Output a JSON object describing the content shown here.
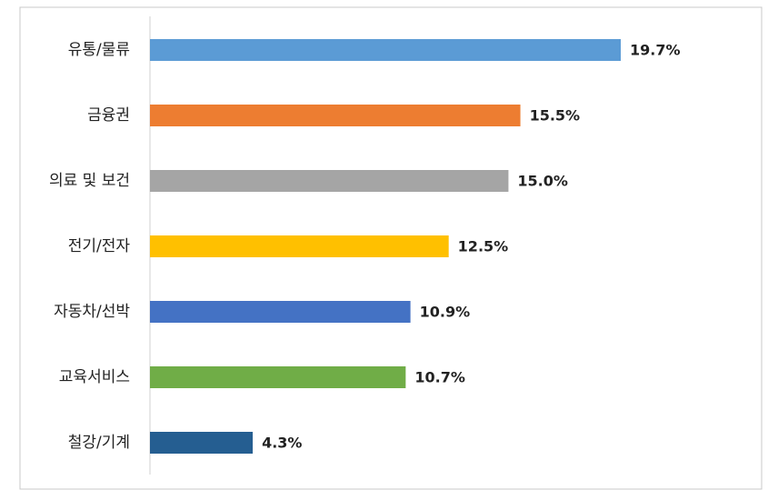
{
  "chart_data": {
    "type": "bar",
    "orientation": "horizontal",
    "categories": [
      "유통/물류",
      "금융권",
      "의료 및 보건",
      "전기/전자",
      "자동차/선박",
      "교육서비스",
      "철강/기계"
    ],
    "values": [
      19.7,
      15.5,
      15.0,
      12.5,
      10.9,
      10.7,
      4.3
    ],
    "value_labels": [
      "19.7%",
      "15.5%",
      "15.0%",
      "12.5%",
      "10.9%",
      "10.7%",
      "4.3%"
    ],
    "colors": [
      "#5b9bd5",
      "#ed7d31",
      "#a5a5a5",
      "#ffc000",
      "#4472c4",
      "#70ad47",
      "#255e91"
    ]
  }
}
